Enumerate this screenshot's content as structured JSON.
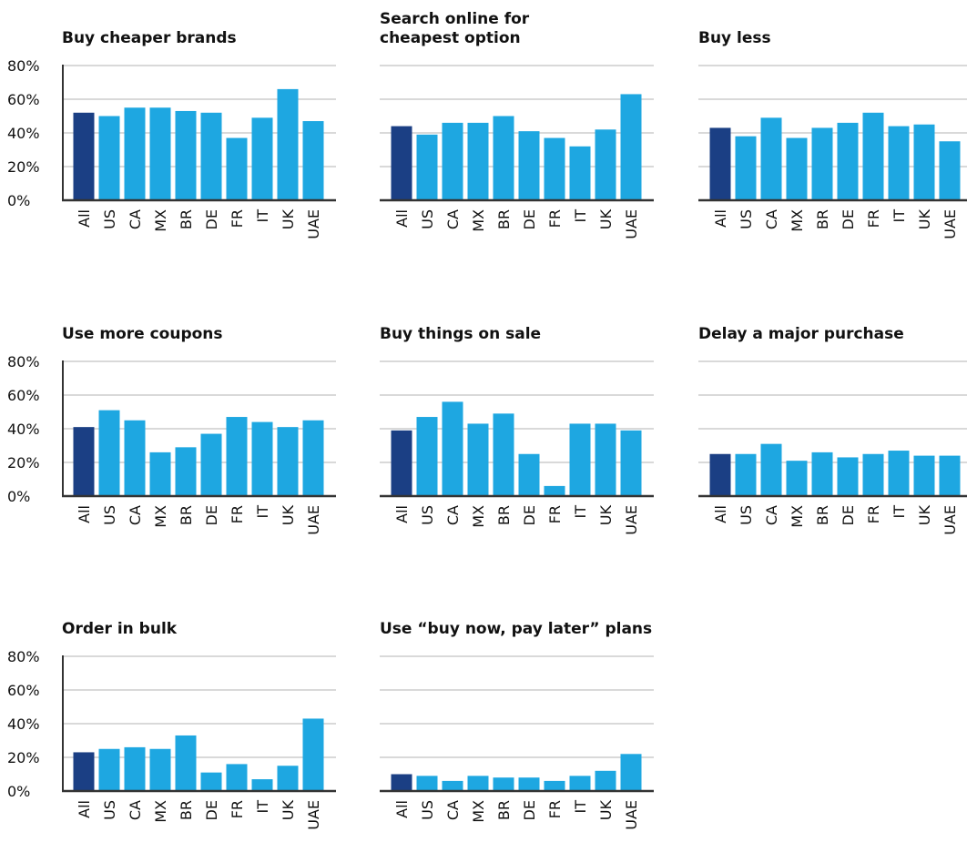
{
  "colors": {
    "highlight": "#1b3f84",
    "bar": "#1ea7e1",
    "grid": "#d9d9d9",
    "axis": "#333333",
    "text": "#111111"
  },
  "chart_data": [
    {
      "type": "bar",
      "title": [
        "Buy cheaper brands"
      ],
      "categories": [
        "All",
        "US",
        "CA",
        "MX",
        "BR",
        "DE",
        "FR",
        "IT",
        "UK",
        "UAE"
      ],
      "values": [
        52,
        50,
        55,
        55,
        53,
        52,
        37,
        49,
        66,
        47
      ],
      "highlight_index": 0,
      "yticks": [
        "0%",
        "20%",
        "40%",
        "60%",
        "80%"
      ],
      "ylim": [
        0,
        80
      ],
      "grid": true
    },
    {
      "type": "bar",
      "title": [
        "Search online for",
        "cheapest option"
      ],
      "categories": [
        "All",
        "US",
        "CA",
        "MX",
        "BR",
        "DE",
        "FR",
        "IT",
        "UK",
        "UAE"
      ],
      "values": [
        44,
        39,
        46,
        46,
        50,
        41,
        37,
        32,
        42,
        63
      ],
      "highlight_index": 0,
      "ylim": [
        0,
        80
      ],
      "grid": true
    },
    {
      "type": "bar",
      "title": [
        "Buy less"
      ],
      "categories": [
        "All",
        "US",
        "CA",
        "MX",
        "BR",
        "DE",
        "FR",
        "IT",
        "UK",
        "UAE"
      ],
      "values": [
        43,
        38,
        49,
        37,
        43,
        46,
        52,
        44,
        45,
        35
      ],
      "highlight_index": 0,
      "ylim": [
        0,
        80
      ],
      "grid": true
    },
    {
      "type": "bar",
      "title": [
        "Use more coupons"
      ],
      "categories": [
        "All",
        "US",
        "CA",
        "MX",
        "BR",
        "DE",
        "FR",
        "IT",
        "UK",
        "UAE"
      ],
      "values": [
        41,
        51,
        45,
        26,
        29,
        37,
        47,
        44,
        41,
        45
      ],
      "highlight_index": 0,
      "yticks": [
        "0%",
        "20%",
        "40%",
        "60%",
        "80%"
      ],
      "ylim": [
        0,
        80
      ],
      "grid": true
    },
    {
      "type": "bar",
      "title": [
        "Buy things on sale"
      ],
      "categories": [
        "All",
        "US",
        "CA",
        "MX",
        "BR",
        "DE",
        "FR",
        "IT",
        "UK",
        "UAE"
      ],
      "values": [
        39,
        47,
        56,
        43,
        49,
        25,
        6,
        43,
        43,
        39
      ],
      "highlight_index": 0,
      "ylim": [
        0,
        80
      ],
      "grid": true
    },
    {
      "type": "bar",
      "title": [
        "Delay a major purchase"
      ],
      "categories": [
        "All",
        "US",
        "CA",
        "MX",
        "BR",
        "DE",
        "FR",
        "IT",
        "UK",
        "UAE"
      ],
      "values": [
        25,
        25,
        31,
        21,
        26,
        23,
        25,
        27,
        24,
        24
      ],
      "highlight_index": 0,
      "ylim": [
        0,
        80
      ],
      "grid": true
    },
    {
      "type": "bar",
      "title": [
        "Order in bulk"
      ],
      "categories": [
        "All",
        "US",
        "CA",
        "MX",
        "BR",
        "DE",
        "FR",
        "IT",
        "UK",
        "UAE"
      ],
      "values": [
        23,
        25,
        26,
        25,
        33,
        11,
        16,
        7,
        15,
        43
      ],
      "highlight_index": 0,
      "yticks": [
        "0%",
        "20%",
        "40%",
        "60%",
        "80%"
      ],
      "ylim": [
        0,
        80
      ],
      "grid": true
    },
    {
      "type": "bar",
      "title": [
        "Use “buy now, pay later” plans"
      ],
      "categories": [
        "All",
        "US",
        "CA",
        "MX",
        "BR",
        "DE",
        "FR",
        "IT",
        "UK",
        "UAE"
      ],
      "values": [
        10,
        9,
        6,
        9,
        8,
        8,
        6,
        9,
        12,
        22
      ],
      "highlight_index": 0,
      "ylim": [
        0,
        80
      ],
      "grid": true
    }
  ]
}
